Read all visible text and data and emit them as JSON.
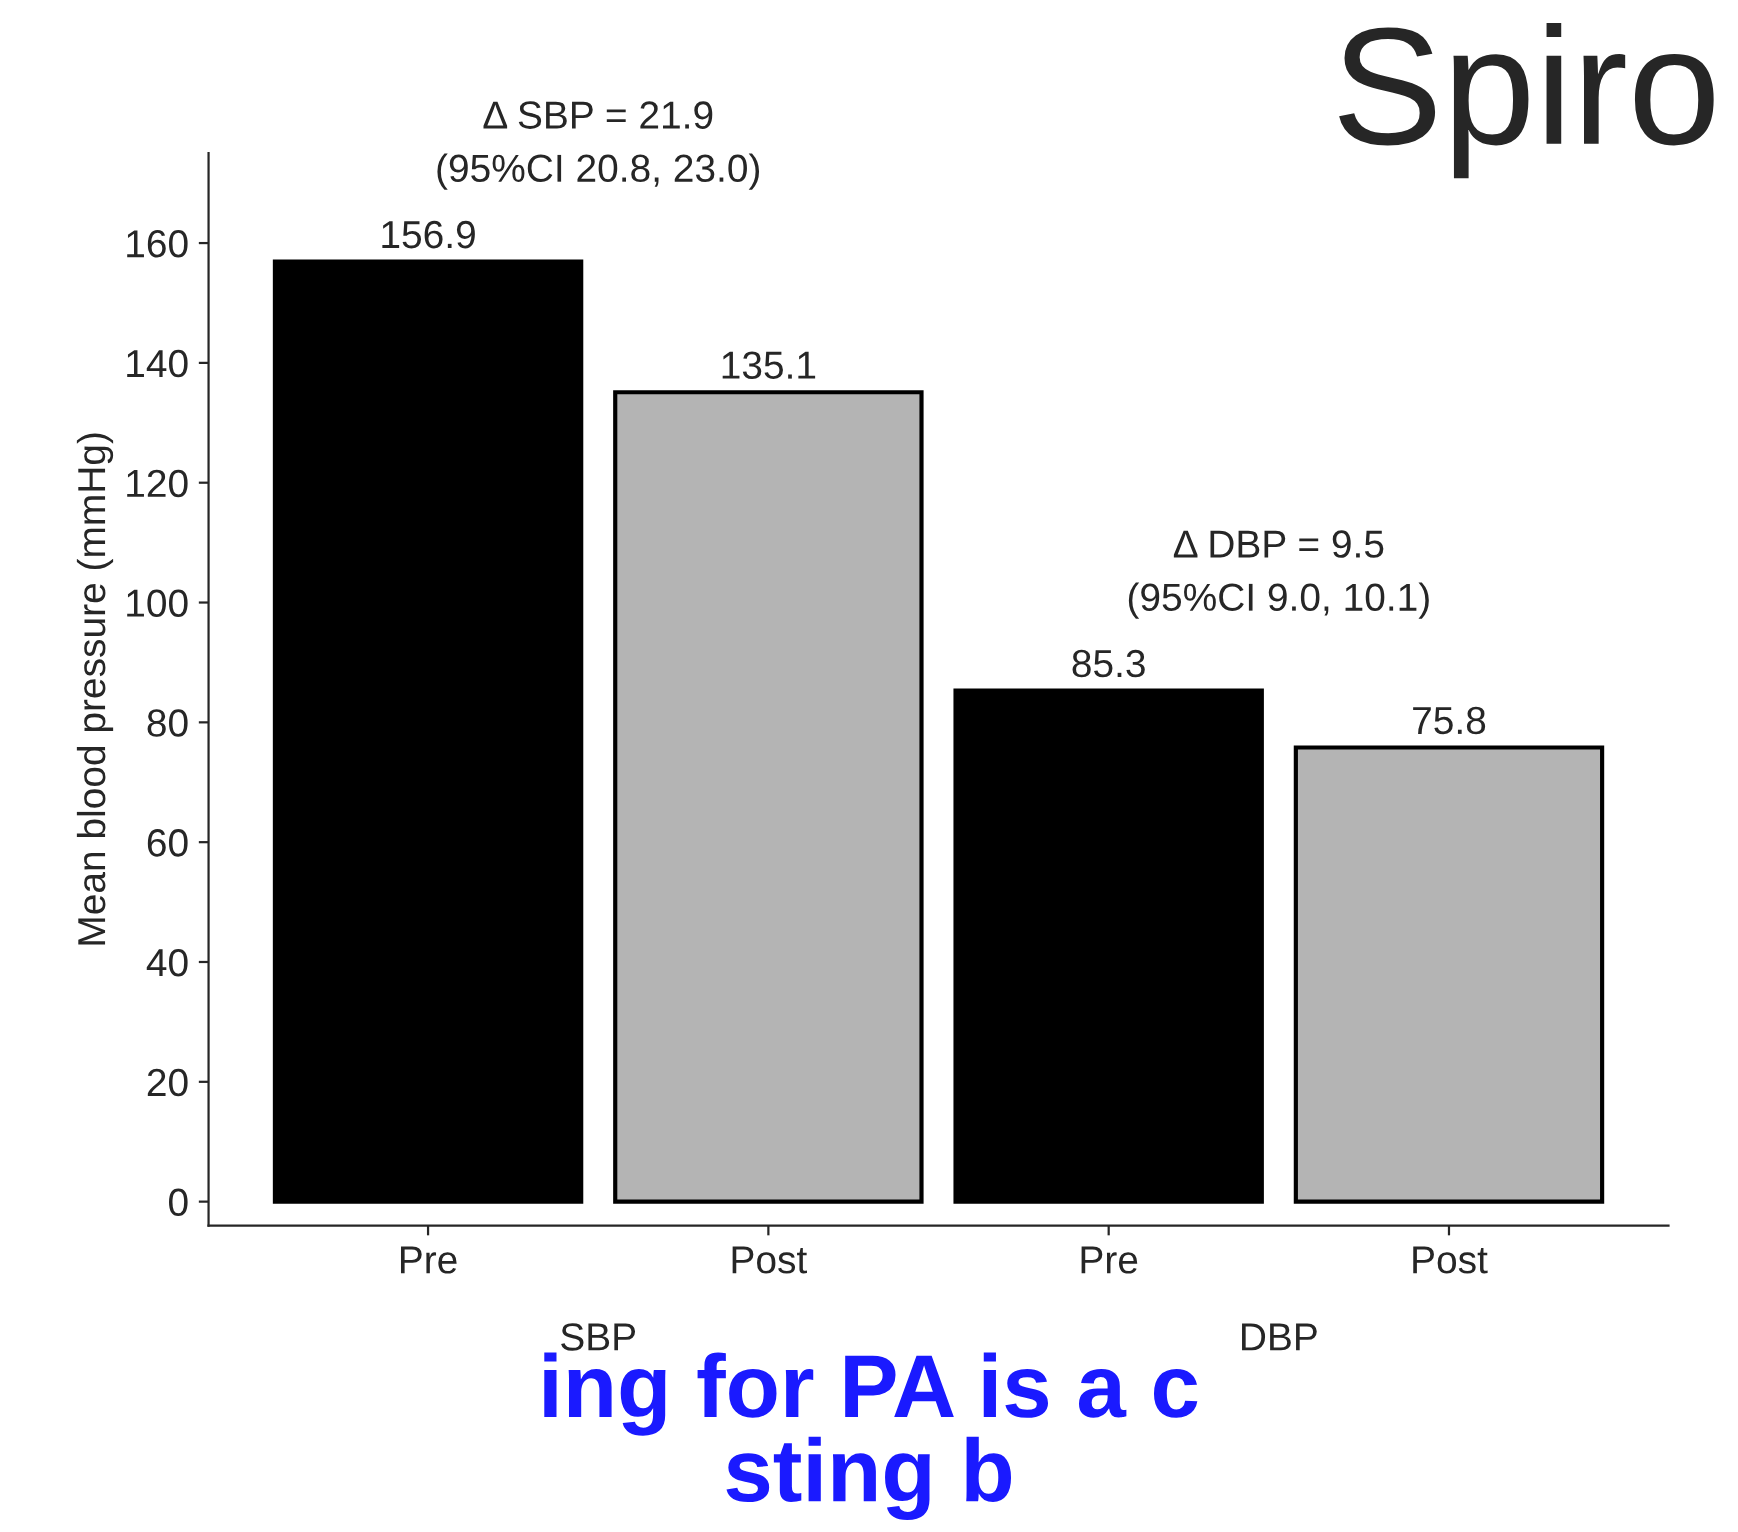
{
  "chart_data": {
    "type": "bar",
    "title": "Spiro",
    "ylabel": "Mean blood pressure (mmHg)",
    "categories": [
      "Pre",
      "Post",
      "Pre",
      "Post"
    ],
    "values": [
      156.9,
      135.1,
      85.3,
      75.8
    ],
    "colors": [
      "#000000",
      "#b4b4b4",
      "#000000",
      "#b4b4b4"
    ],
    "data_labels": true,
    "ylim": [
      -4,
      175
    ],
    "yticks": [
      0,
      20,
      40,
      60,
      80,
      100,
      120,
      140,
      160
    ],
    "grid": false,
    "legend": false,
    "annotations": [
      "Δ SBP = 21.9\n(95%CI 20.8, 23.0)",
      "Δ DBP = 9.5\n(95%CI 9.0, 10.1)",
      "SBP",
      "DBP",
      "ing for PA is a c",
      "sting b"
    ]
  }
}
